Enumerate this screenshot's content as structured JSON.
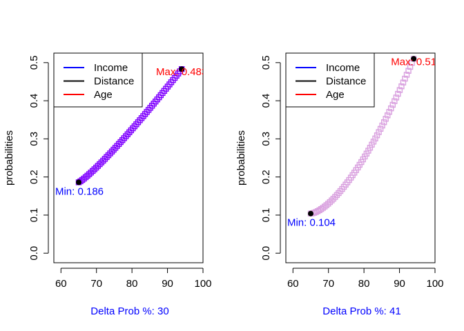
{
  "chart_data": [
    {
      "type": "scatter",
      "xlabel": "Delta Prob %: 30",
      "ylabel": "probabilities",
      "xlim": [
        58,
        100
      ],
      "ylim": [
        -0.025,
        0.525
      ],
      "x_ticks": [
        60,
        70,
        80,
        90,
        100
      ],
      "y_ticks": [
        0.0,
        0.1,
        0.2,
        0.3,
        0.4,
        0.5
      ],
      "x_tick_labels": [
        "60",
        "70",
        "80",
        "90",
        "100"
      ],
      "y_tick_labels": [
        "0.0",
        "0.1",
        "0.2",
        "0.3",
        "0.4",
        "0.5"
      ],
      "curve": {
        "x_from": 65,
        "x_to": 94,
        "y_from": 0.186,
        "y_to": 0.483,
        "shape": 1.15,
        "points": 60,
        "color": "#7f00ff",
        "style": "open-square"
      },
      "min_point": {
        "x": 65,
        "y": 0.186,
        "label": "Min: 0.186",
        "color": "#0000ff"
      },
      "max_point": {
        "x": 94,
        "y": 0.483,
        "label": "Max: 0.483",
        "color": "#ff0000"
      },
      "legend": {
        "placement": "top-left",
        "entries": [
          {
            "label": "Income",
            "color": "#0000ff"
          },
          {
            "label": "Distance",
            "color": "#000000"
          },
          {
            "label": "Age",
            "color": "#ff0000"
          }
        ]
      }
    },
    {
      "type": "scatter",
      "xlabel": "Delta Prob %: 41",
      "ylabel": "probabilities",
      "xlim": [
        58,
        100
      ],
      "ylim": [
        -0.025,
        0.525
      ],
      "x_ticks": [
        60,
        70,
        80,
        90,
        100
      ],
      "y_ticks": [
        0.0,
        0.1,
        0.2,
        0.3,
        0.4,
        0.5
      ],
      "x_tick_labels": [
        "60",
        "70",
        "80",
        "90",
        "100"
      ],
      "y_tick_labels": [
        "0.0",
        "0.1",
        "0.2",
        "0.3",
        "0.4",
        "0.5"
      ],
      "curve": {
        "x_from": 65,
        "x_to": 94,
        "y_from": 0.104,
        "y_to": 0.51,
        "shape": 1.55,
        "points": 60,
        "color": "#d9a0df",
        "style": "open-square"
      },
      "min_point": {
        "x": 65,
        "y": 0.104,
        "label": "Min: 0.104",
        "color": "#0000ff"
      },
      "max_point": {
        "x": 94,
        "y": 0.51,
        "label": "Max: 0.51",
        "color": "#ff0000"
      },
      "legend": {
        "placement": "top-left",
        "entries": [
          {
            "label": "Income",
            "color": "#0000ff"
          },
          {
            "label": "Distance",
            "color": "#000000"
          },
          {
            "label": "Age",
            "color": "#ff0000"
          }
        ]
      }
    }
  ]
}
